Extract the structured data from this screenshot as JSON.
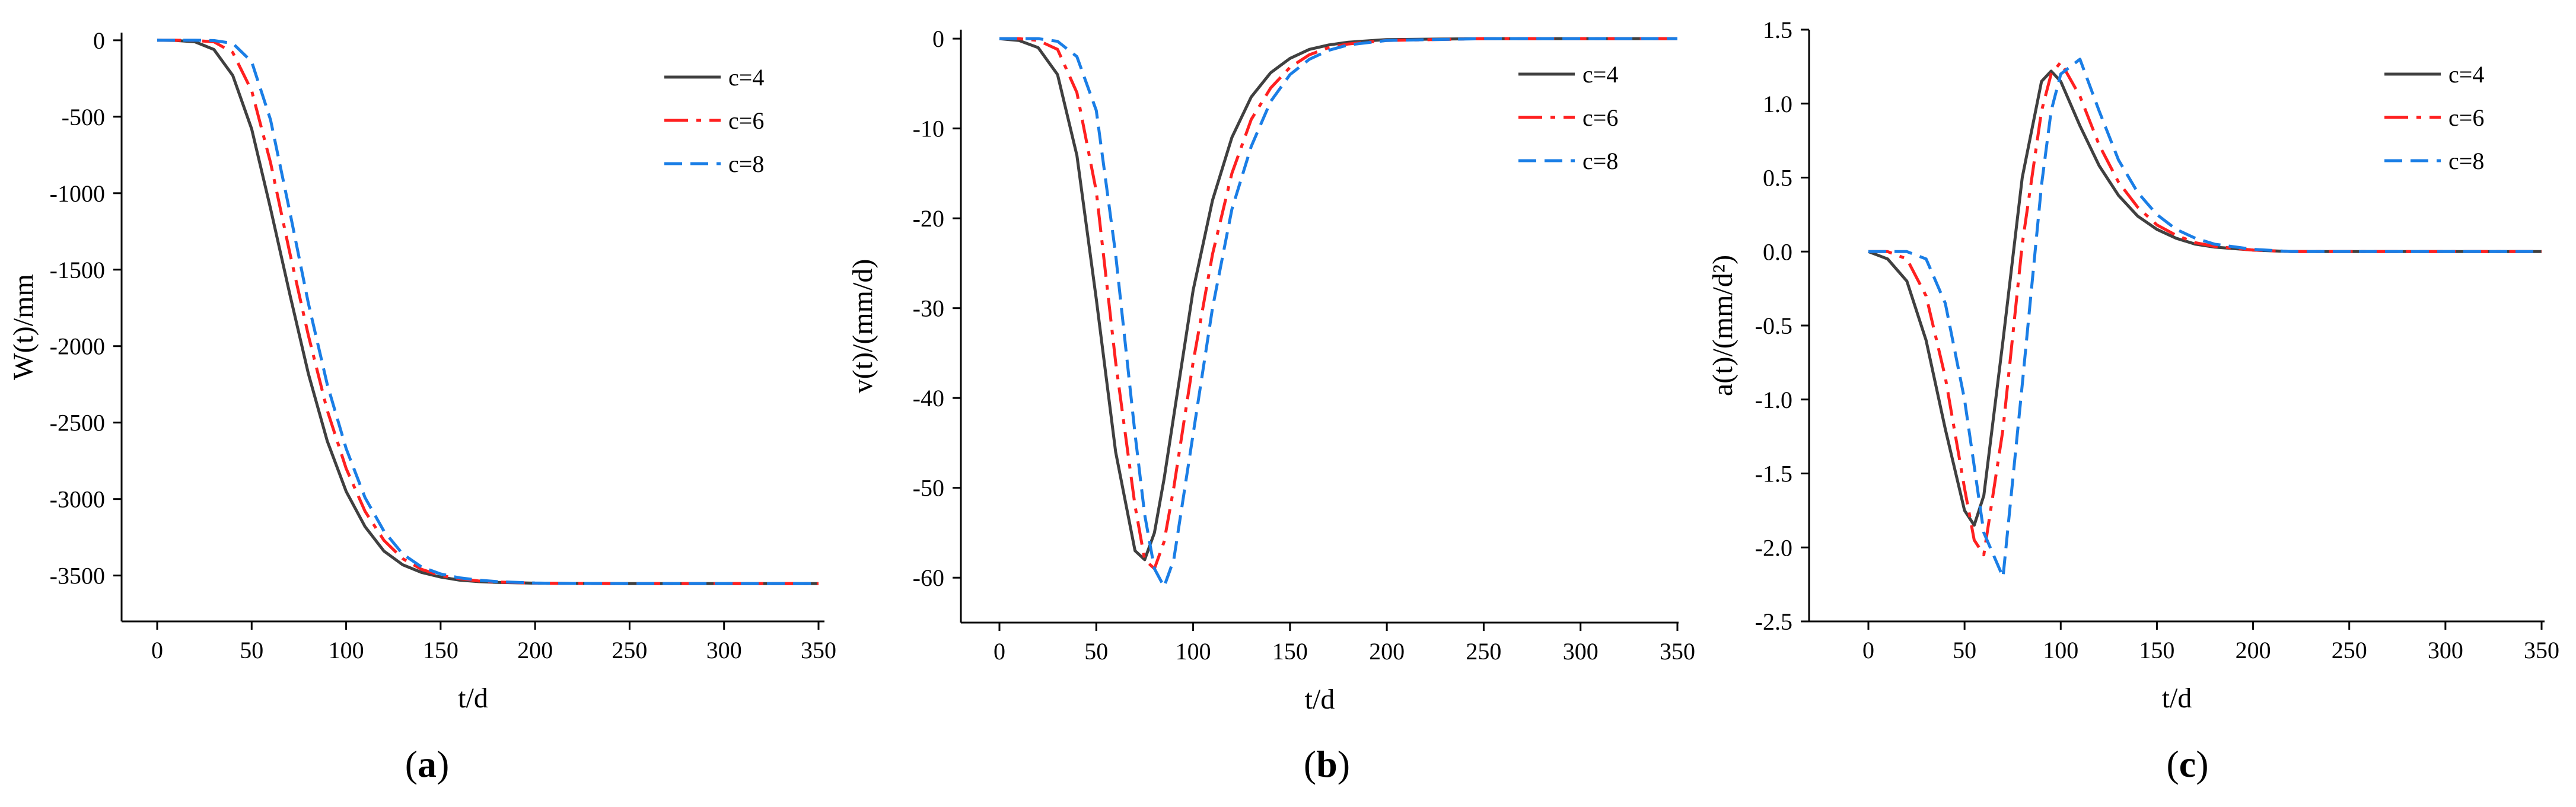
{
  "colors": {
    "c4": "#404040",
    "c6": "#ff2020",
    "c8": "#1a7ee6",
    "axis": "#000000"
  },
  "chart_data": [
    {
      "id": "a",
      "type": "line",
      "caption": "a",
      "xlabel": "t/d",
      "ylabel": "W(t)/mm",
      "xlim": [
        -20,
        360
      ],
      "ylim": [
        -3800,
        50
      ],
      "xticks": [
        "0",
        "50",
        "100",
        "150",
        "200",
        "250",
        "300",
        "350"
      ],
      "xtick_values": [
        0,
        50,
        100,
        150,
        200,
        250,
        300,
        350
      ],
      "yticks": [
        "0",
        "-500",
        "-1000",
        "-1500",
        "-2000",
        "-2500",
        "-3000",
        "-3500"
      ],
      "ytick_values": [
        0,
        -500,
        -1000,
        -1500,
        -2000,
        -2500,
        -3000,
        -3500
      ],
      "legend": [
        "c=4",
        "c=6",
        "c=8"
      ],
      "legend_position": "top-right",
      "x": [
        0,
        10,
        20,
        30,
        40,
        50,
        60,
        70,
        80,
        90,
        100,
        110,
        120,
        130,
        140,
        150,
        160,
        170,
        180,
        200,
        220,
        250,
        300,
        350
      ],
      "series": [
        {
          "name": "c=4",
          "style": "solid",
          "color": "#404040",
          "values": [
            0,
            -1,
            -10,
            -60,
            -230,
            -580,
            -1100,
            -1650,
            -2180,
            -2620,
            -2950,
            -3180,
            -3340,
            -3430,
            -3480,
            -3510,
            -3530,
            -3540,
            -3545,
            -3550,
            -3552,
            -3553,
            -3553,
            -3553
          ]
        },
        {
          "name": "c=6",
          "style": "dashdot",
          "color": "#ff2020",
          "values": [
            0,
            0,
            -1,
            -10,
            -80,
            -330,
            -800,
            -1380,
            -1930,
            -2420,
            -2800,
            -3080,
            -3270,
            -3390,
            -3460,
            -3500,
            -3520,
            -3535,
            -3542,
            -3550,
            -3552,
            -3553,
            -3553,
            -3553
          ]
        },
        {
          "name": "c=8",
          "style": "dashed",
          "color": "#1a7ee6",
          "values": [
            0,
            0,
            0,
            -2,
            -20,
            -140,
            -520,
            -1110,
            -1720,
            -2250,
            -2670,
            -2990,
            -3210,
            -3360,
            -3445,
            -3490,
            -3515,
            -3530,
            -3540,
            -3549,
            -3552,
            -3553,
            -3553,
            -3553
          ]
        }
      ]
    },
    {
      "id": "b",
      "type": "line",
      "caption": "b",
      "xlabel": "t/d",
      "ylabel": "v(t)/(mm/d)",
      "xlim": [
        -20,
        360
      ],
      "ylim": [
        -65,
        1
      ],
      "xticks": [
        "0",
        "50",
        "100",
        "150",
        "200",
        "250",
        "300",
        "350"
      ],
      "xtick_values": [
        0,
        50,
        100,
        150,
        200,
        250,
        300,
        350
      ],
      "yticks": [
        "0",
        "-10",
        "-20",
        "-30",
        "-40",
        "-50",
        "-60"
      ],
      "ytick_values": [
        0,
        -10,
        -20,
        -30,
        -40,
        -50,
        -60
      ],
      "legend": [
        "c=4",
        "c=6",
        "c=8"
      ],
      "legend_position": "top-right",
      "x": [
        0,
        10,
        20,
        30,
        40,
        50,
        60,
        70,
        75,
        80,
        85,
        90,
        100,
        110,
        120,
        130,
        140,
        150,
        160,
        170,
        180,
        200,
        250,
        300,
        350
      ],
      "series": [
        {
          "name": "c=4",
          "style": "solid",
          "color": "#404040",
          "values": [
            0,
            -0.2,
            -1,
            -4,
            -13,
            -29,
            -46,
            -57,
            -58,
            -55,
            -49,
            -42,
            -28,
            -18,
            -11,
            -6.5,
            -3.8,
            -2.2,
            -1.2,
            -0.7,
            -0.4,
            -0.1,
            0,
            0,
            0
          ]
        },
        {
          "name": "c=6",
          "style": "dashdot",
          "color": "#ff2020",
          "values": [
            0,
            0,
            -0.2,
            -1.2,
            -6,
            -17,
            -36,
            -52,
            -58,
            -59,
            -56,
            -50,
            -36,
            -24,
            -15,
            -9,
            -5.5,
            -3.2,
            -1.8,
            -1,
            -0.6,
            -0.2,
            0,
            0,
            0
          ]
        },
        {
          "name": "c=8",
          "style": "dashed",
          "color": "#1a7ee6",
          "values": [
            0,
            0,
            0,
            -0.3,
            -2,
            -8,
            -24,
            -44,
            -53,
            -59,
            -61,
            -58,
            -44,
            -30,
            -19,
            -12,
            -7,
            -4,
            -2.3,
            -1.3,
            -0.7,
            -0.2,
            0,
            0,
            0
          ]
        }
      ]
    },
    {
      "id": "c",
      "type": "line",
      "caption": "c",
      "xlabel": "t/d",
      "ylabel": "a(t)/(mm/d²)",
      "xlim": [
        -20,
        360
      ],
      "ylim": [
        -2.5,
        1.5
      ],
      "xticks": [
        "0",
        "50",
        "100",
        "150",
        "200",
        "250",
        "300",
        "350"
      ],
      "xtick_values": [
        0,
        50,
        100,
        150,
        200,
        250,
        300,
        350
      ],
      "yticks": [
        "1.5",
        "1.0",
        "0.5",
        "0.0",
        "-0.5",
        "-1.0",
        "-1.5",
        "-2.0",
        "-2.5"
      ],
      "ytick_values": [
        1.5,
        1.0,
        0.5,
        0.0,
        -0.5,
        -1.0,
        -1.5,
        -2.0,
        -2.5
      ],
      "legend": [
        "c=4",
        "c=6",
        "c=8"
      ],
      "legend_position": "top-right",
      "x": [
        0,
        10,
        20,
        30,
        40,
        50,
        55,
        60,
        70,
        80,
        90,
        95,
        100,
        110,
        120,
        130,
        140,
        150,
        160,
        170,
        180,
        200,
        220,
        250,
        300,
        350
      ],
      "series": [
        {
          "name": "c=4",
          "style": "solid",
          "color": "#404040",
          "values": [
            0,
            -0.05,
            -0.2,
            -0.6,
            -1.2,
            -1.75,
            -1.85,
            -1.65,
            -0.6,
            0.5,
            1.15,
            1.22,
            1.15,
            0.85,
            0.58,
            0.38,
            0.24,
            0.15,
            0.09,
            0.05,
            0.03,
            0.01,
            0,
            0,
            0,
            0
          ]
        },
        {
          "name": "c=6",
          "style": "dashdot",
          "color": "#ff2020",
          "values": [
            0,
            0,
            -0.05,
            -0.3,
            -0.85,
            -1.6,
            -1.95,
            -2.05,
            -1.2,
            0.05,
            0.95,
            1.2,
            1.28,
            1.05,
            0.72,
            0.47,
            0.3,
            0.18,
            0.11,
            0.06,
            0.035,
            0.01,
            0,
            0,
            0,
            0
          ]
        },
        {
          "name": "c=8",
          "style": "dashed",
          "color": "#1a7ee6",
          "values": [
            0,
            0,
            0,
            -0.05,
            -0.35,
            -1.0,
            -1.45,
            -1.9,
            -2.2,
            -0.9,
            0.45,
            0.95,
            1.2,
            1.3,
            0.95,
            0.62,
            0.4,
            0.25,
            0.15,
            0.09,
            0.05,
            0.015,
            0,
            0,
            0,
            0
          ]
        }
      ]
    }
  ]
}
